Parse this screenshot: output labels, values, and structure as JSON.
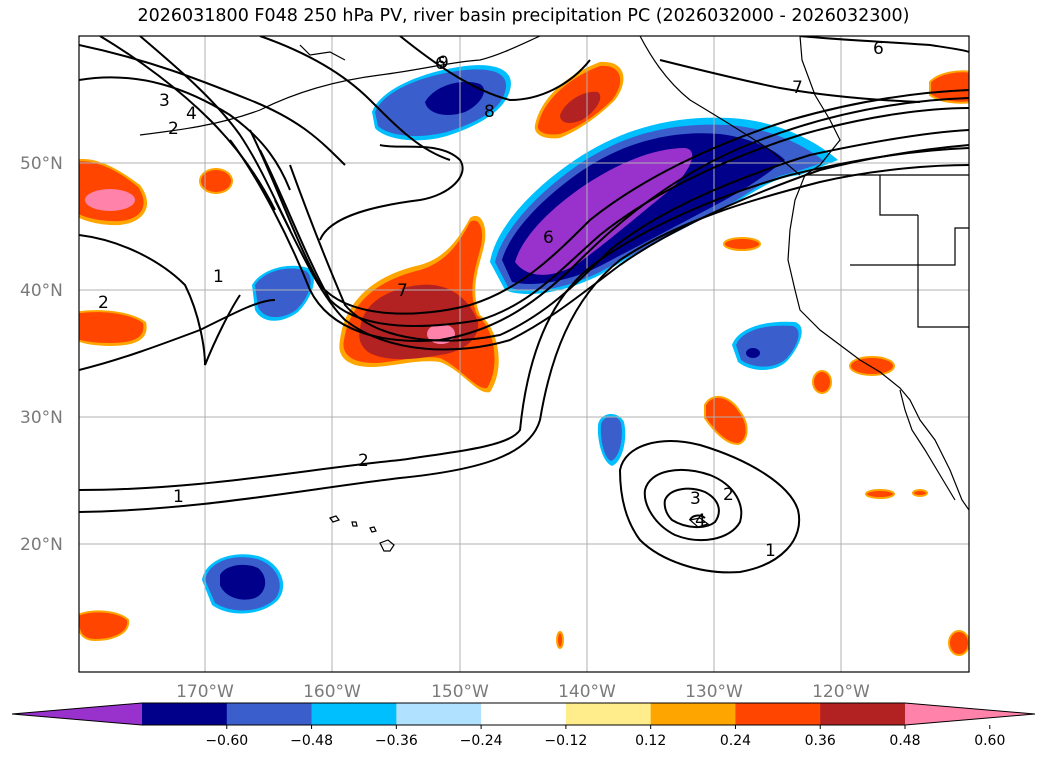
{
  "title": "2026031800 F048 250 hPa PV, river basin precipitation PC (2026032000 - 2026032300)",
  "map": {
    "lat_range": [
      10,
      60
    ],
    "lon_range": [
      -180,
      -110
    ],
    "lat_labels": [
      "50°N",
      "40°N",
      "30°N",
      "20°N"
    ],
    "lon_labels": [
      "170°W",
      "160°W",
      "150°W",
      "140°W",
      "130°W",
      "120°W"
    ],
    "pv_contour_labels": [
      "3",
      "4",
      "2",
      "1",
      "2",
      "7",
      "6",
      "8",
      "6",
      "9",
      "2",
      "1",
      "3",
      "2",
      "4",
      "1",
      "6",
      "7"
    ]
  },
  "colorbar": {
    "colors": [
      "#9932cc",
      "#00008b",
      "#3a5fcd",
      "#00bfff",
      "#b0e2ff",
      "#ffffff",
      "#ffec8b",
      "#ffa500",
      "#ff4500",
      "#b22222",
      "#ff82ab"
    ],
    "ticks": [
      "−0.60",
      "−0.48",
      "−0.36",
      "−0.24",
      "−0.12",
      "0.12",
      "0.24",
      "0.36",
      "0.48",
      "0.60"
    ]
  }
}
